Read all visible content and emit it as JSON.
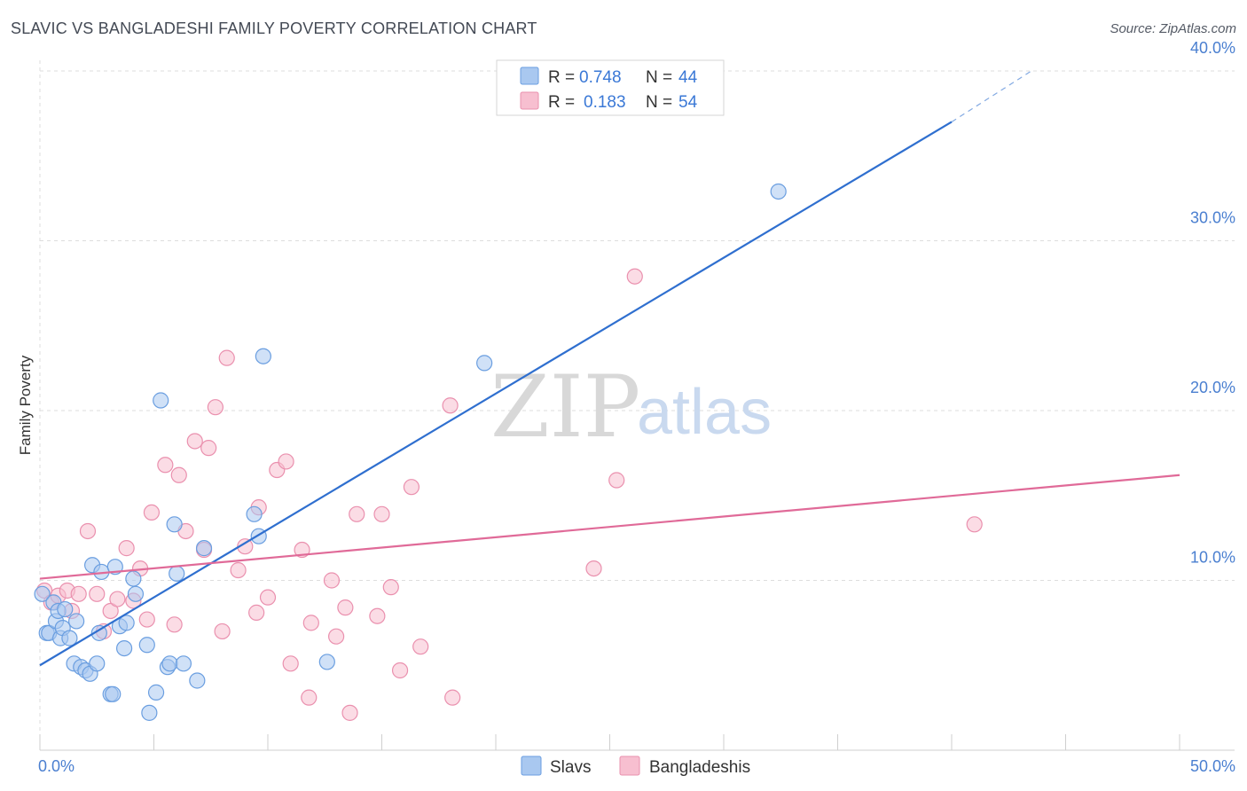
{
  "title": "SLAVIC VS BANGLADESHI FAMILY POVERTY CORRELATION CHART",
  "source": "Source: ZipAtlas.com",
  "watermark": {
    "zip": "ZIP",
    "atlas": "atlas"
  },
  "colors": {
    "slavs_fill": "#a9c8f0",
    "slavs_stroke": "#6a9ee0",
    "slavs_line": "#2f6fcf",
    "bangladeshis_fill": "#f7bfd0",
    "bangladeshis_stroke": "#ea90ae",
    "bangladeshis_line": "#e06a98",
    "grid": "#dddddd",
    "tick_label": "#4a7fd0"
  },
  "legend": {
    "r_label": "R =",
    "n_label": "N =",
    "slavs": {
      "r": "0.748",
      "n": "44"
    },
    "bangladeshis": {
      "r": "0.183",
      "n": "54"
    }
  },
  "chart_data": {
    "type": "scatter",
    "title": "SLAVIC VS BANGLADESHI FAMILY POVERTY CORRELATION CHART",
    "xlabel": "",
    "ylabel": "Family Poverty",
    "xlim": [
      0,
      50
    ],
    "ylim": [
      0,
      40
    ],
    "x_tick_labels": [
      "0.0%",
      "50.0%"
    ],
    "y_ticks": [
      10,
      20,
      30,
      40
    ],
    "y_tick_labels": [
      "10.0%",
      "20.0%",
      "30.0%",
      "40.0%"
    ],
    "grid": true,
    "legend_position": "top-center",
    "series": [
      {
        "name": "Slavs",
        "points": [
          [
            0.1,
            9.2
          ],
          [
            0.3,
            6.9
          ],
          [
            0.4,
            6.9
          ],
          [
            0.6,
            8.7
          ],
          [
            0.7,
            7.6
          ],
          [
            0.8,
            8.2
          ],
          [
            0.9,
            6.6
          ],
          [
            1.0,
            7.2
          ],
          [
            1.1,
            8.3
          ],
          [
            1.3,
            6.6
          ],
          [
            1.5,
            5.1
          ],
          [
            1.6,
            7.6
          ],
          [
            1.8,
            4.9
          ],
          [
            2.0,
            4.7
          ],
          [
            2.2,
            4.5
          ],
          [
            2.3,
            10.9
          ],
          [
            2.5,
            5.1
          ],
          [
            2.6,
            6.9
          ],
          [
            2.7,
            10.5
          ],
          [
            3.1,
            3.3
          ],
          [
            3.2,
            3.3
          ],
          [
            3.3,
            10.8
          ],
          [
            3.5,
            7.3
          ],
          [
            3.7,
            6.0
          ],
          [
            3.8,
            7.5
          ],
          [
            4.1,
            10.1
          ],
          [
            4.2,
            9.2
          ],
          [
            4.7,
            6.2
          ],
          [
            4.8,
            2.2
          ],
          [
            5.1,
            3.4
          ],
          [
            5.3,
            20.6
          ],
          [
            5.6,
            4.9
          ],
          [
            5.7,
            5.1
          ],
          [
            5.9,
            13.3
          ],
          [
            6.0,
            10.4
          ],
          [
            6.3,
            5.1
          ],
          [
            6.9,
            4.1
          ],
          [
            7.2,
            11.9
          ],
          [
            9.4,
            13.9
          ],
          [
            9.6,
            12.6
          ],
          [
            9.8,
            23.2
          ],
          [
            12.6,
            5.2
          ],
          [
            19.5,
            22.8
          ],
          [
            32.4,
            32.9
          ]
        ],
        "trend": {
          "x": [
            0.0,
            40.0
          ],
          "y": [
            5.0,
            37.0
          ],
          "dashed_to": [
            43.5,
            40.0
          ]
        }
      },
      {
        "name": "Bangladeshis",
        "points": [
          [
            0.2,
            9.4
          ],
          [
            0.5,
            8.7
          ],
          [
            0.8,
            9.1
          ],
          [
            1.2,
            9.4
          ],
          [
            1.4,
            8.2
          ],
          [
            1.7,
            9.2
          ],
          [
            2.1,
            12.9
          ],
          [
            2.5,
            9.2
          ],
          [
            2.8,
            7.0
          ],
          [
            3.1,
            8.2
          ],
          [
            3.4,
            8.9
          ],
          [
            3.8,
            11.9
          ],
          [
            4.1,
            8.8
          ],
          [
            4.4,
            10.7
          ],
          [
            4.7,
            7.7
          ],
          [
            4.9,
            14.0
          ],
          [
            5.5,
            16.8
          ],
          [
            5.9,
            7.4
          ],
          [
            6.1,
            16.2
          ],
          [
            6.4,
            12.9
          ],
          [
            6.8,
            18.2
          ],
          [
            7.2,
            11.8
          ],
          [
            7.4,
            17.8
          ],
          [
            7.7,
            20.2
          ],
          [
            8.0,
            7.0
          ],
          [
            8.2,
            23.1
          ],
          [
            8.7,
            10.6
          ],
          [
            9.0,
            12.0
          ],
          [
            9.5,
            8.1
          ],
          [
            9.6,
            14.3
          ],
          [
            10.0,
            9.0
          ],
          [
            10.4,
            16.5
          ],
          [
            10.8,
            17.0
          ],
          [
            11.0,
            5.1
          ],
          [
            11.5,
            11.8
          ],
          [
            11.8,
            3.1
          ],
          [
            11.9,
            7.5
          ],
          [
            12.8,
            10.0
          ],
          [
            13.0,
            6.7
          ],
          [
            13.4,
            8.4
          ],
          [
            13.6,
            2.2
          ],
          [
            13.9,
            13.9
          ],
          [
            14.8,
            7.9
          ],
          [
            15.0,
            13.9
          ],
          [
            15.4,
            9.6
          ],
          [
            15.8,
            4.7
          ],
          [
            16.3,
            15.5
          ],
          [
            16.7,
            6.1
          ],
          [
            18.0,
            20.3
          ],
          [
            18.1,
            3.1
          ],
          [
            24.3,
            10.7
          ],
          [
            25.3,
            15.9
          ],
          [
            26.1,
            27.9
          ],
          [
            41.0,
            13.3
          ]
        ],
        "trend": {
          "x": [
            0.0,
            50.0
          ],
          "y": [
            10.1,
            16.2
          ]
        }
      }
    ]
  }
}
